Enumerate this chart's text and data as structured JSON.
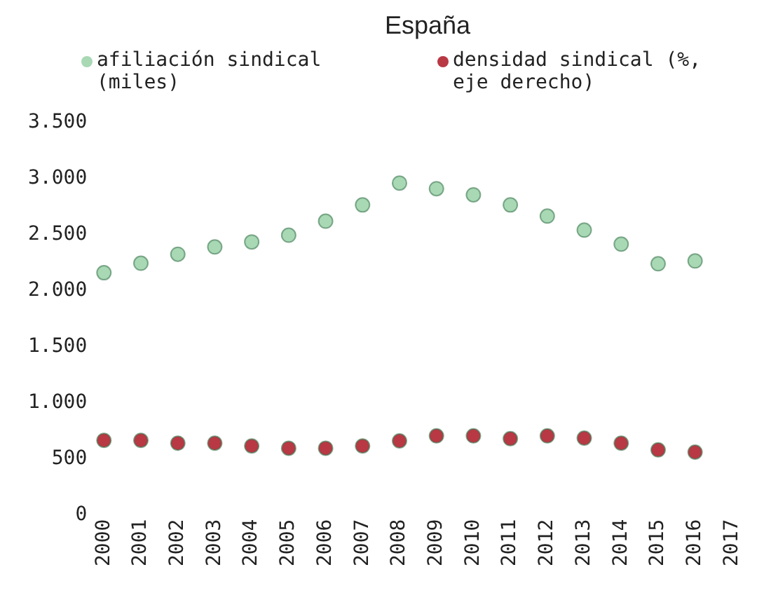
{
  "chart_data": {
    "type": "scatter",
    "title": "España",
    "categories": [
      "2000",
      "2001",
      "2002",
      "2003",
      "2004",
      "2005",
      "2006",
      "2007",
      "2008",
      "2009",
      "2010",
      "2011",
      "2012",
      "2013",
      "2014",
      "2015",
      "2016",
      "2017"
    ],
    "series": [
      {
        "name": "afiliación sindical (miles)",
        "color": "#a8d8b4",
        "values": [
          2160,
          2245,
          2325,
          2390,
          2435,
          2495,
          2620,
          2765,
          2960,
          2910,
          2855,
          2765,
          2665,
          2540,
          2415,
          2240,
          2265,
          null
        ]
      },
      {
        "name": "densidad sindical (%, eje derecho)",
        "color": "#b83844",
        "values": [
          665,
          665,
          640,
          640,
          615,
          595,
          595,
          615,
          660,
          705,
          705,
          680,
          705,
          685,
          640,
          580,
          560,
          null
        ]
      }
    ],
    "ylim": [
      0,
      3500
    ],
    "yticks": [
      {
        "value": 0,
        "label": "0"
      },
      {
        "value": 500,
        "label": "500"
      },
      {
        "value": 1000,
        "label": "1.000"
      },
      {
        "value": 1500,
        "label": "1.500"
      },
      {
        "value": 2000,
        "label": "2.000"
      },
      {
        "value": 2500,
        "label": "2.500"
      },
      {
        "value": 3000,
        "label": "3.000"
      },
      {
        "value": 3500,
        "label": "3.500"
      }
    ],
    "grid": false,
    "legend": "top",
    "marker": "circle"
  }
}
